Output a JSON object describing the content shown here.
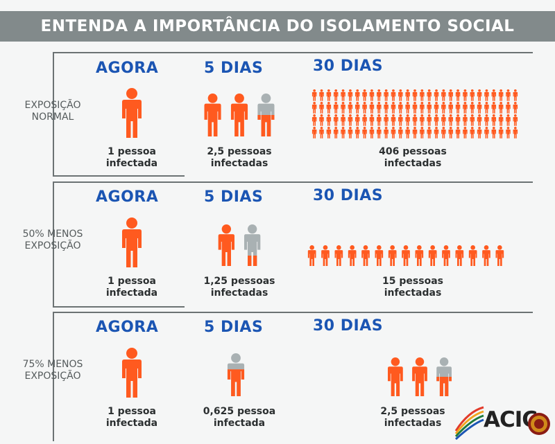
{
  "title": "ENTENDA A IMPORTÂNCIA DO ISOLAMENTO SOCIAL",
  "colors": {
    "person": "#ff5a1f",
    "person_gray": "#a9b1b3",
    "header": "#828a8b",
    "heading": "#1b55b3"
  },
  "rows": [
    {
      "label": [
        "EXPOSIÇÃO",
        "NORMAL"
      ],
      "columns": [
        {
          "heading": "AGORA",
          "value": 1,
          "caption": [
            "1 pessoa",
            "infectada"
          ]
        },
        {
          "heading": "5 DIAS",
          "value": 2.5,
          "caption": [
            "2,5 pessoas",
            "infectadas"
          ]
        },
        {
          "heading": "30 DIAS",
          "value": 406,
          "caption": [
            "406 pessoas",
            "infectadas"
          ]
        }
      ]
    },
    {
      "label": [
        "50% MENOS",
        "EXPOSIÇÃO"
      ],
      "columns": [
        {
          "heading": "AGORA",
          "value": 1,
          "caption": [
            "1 pessoa",
            "infectada"
          ]
        },
        {
          "heading": "5 DIAS",
          "value": 1.25,
          "caption": [
            "1,25 pessoas",
            "infectadas"
          ]
        },
        {
          "heading": "30 DIAS",
          "value": 15,
          "caption": [
            "15 pessoas",
            "infectadas"
          ]
        }
      ]
    },
    {
      "label": [
        "75% MENOS",
        "EXPOSIÇÃO"
      ],
      "columns": [
        {
          "heading": "AGORA",
          "value": 1,
          "caption": [
            "1 pessoa",
            "infectada"
          ]
        },
        {
          "heading": "5 DIAS",
          "value": 0.625,
          "caption": [
            "0,625 pessoa",
            "infectada"
          ]
        },
        {
          "heading": "30 DIAS",
          "value": 2.5,
          "caption": [
            "2,5 pessoas",
            "infectadas"
          ]
        }
      ]
    }
  ],
  "logo": {
    "text": "ACIC"
  }
}
